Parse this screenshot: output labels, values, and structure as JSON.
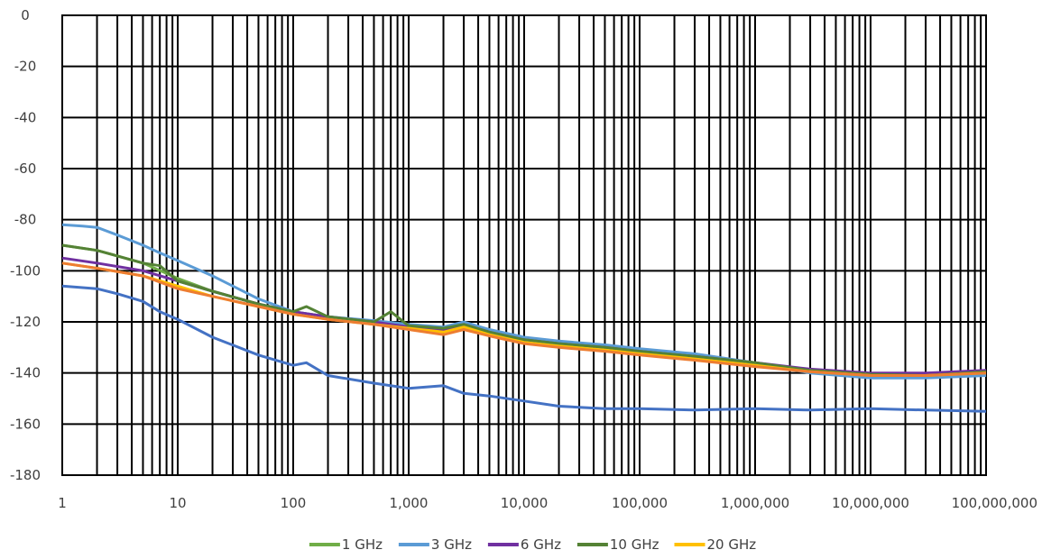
{
  "chart_data": {
    "type": "line",
    "x_scale": "log",
    "xlim": [
      1,
      100000000
    ],
    "ylim": [
      -180,
      0
    ],
    "grid": true,
    "legend_position": "bottom",
    "y_ticks": [
      {
        "value": 0,
        "label": "0"
      },
      {
        "value": -20,
        "label": "-20"
      },
      {
        "value": -40,
        "label": "-40"
      },
      {
        "value": -60,
        "label": "-60"
      },
      {
        "value": -80,
        "label": "-80"
      },
      {
        "value": -100,
        "label": "-100"
      },
      {
        "value": -120,
        "label": "-120"
      },
      {
        "value": -140,
        "label": "-140"
      },
      {
        "value": -160,
        "label": "-160"
      },
      {
        "value": -180,
        "label": "-180"
      }
    ],
    "x_ticks": [
      {
        "value": 1,
        "label": "1"
      },
      {
        "value": 10,
        "label": "10"
      },
      {
        "value": 100,
        "label": "100"
      },
      {
        "value": 1000,
        "label": "1,000"
      },
      {
        "value": 10000,
        "label": "10,000"
      },
      {
        "value": 100000,
        "label": "100,000"
      },
      {
        "value": 1000000,
        "label": "1,000,000"
      },
      {
        "value": 10000000,
        "label": "10,000,000"
      },
      {
        "value": 100000000,
        "label": "100,000,000"
      }
    ],
    "series": [
      {
        "name": "1 GHz",
        "color": "#70ad47",
        "x": [
          1,
          2,
          5,
          10,
          20,
          50,
          100,
          200,
          500,
          1000,
          2000,
          3000,
          5000,
          10000,
          20000,
          50000,
          100000,
          300000,
          1000000,
          3000000,
          10000000,
          30000000,
          100000000
        ],
        "y": [
          -90,
          -92,
          -97,
          -103,
          -108,
          -113,
          -116,
          -118,
          -120,
          -122,
          -123,
          -121,
          -124,
          -127,
          -128,
          -130,
          -131,
          -133,
          -136,
          -139,
          -141,
          -141,
          -139
        ]
      },
      {
        "name": "3 GHz",
        "color": "#5b9bd5",
        "x": [
          1,
          1.5,
          2,
          3,
          5,
          7,
          10,
          20,
          50,
          100,
          200,
          500,
          1000,
          2000,
          3000,
          5000,
          10000,
          20000,
          50000,
          100000,
          300000,
          1000000,
          3000000,
          10000000,
          30000000,
          100000000
        ],
        "y": [
          -82,
          -82.5,
          -83,
          -86,
          -90,
          -93,
          -96,
          -102,
          -111,
          -116,
          -118,
          -119.5,
          -121,
          -122,
          -120,
          -123,
          -126,
          -127.5,
          -129,
          -130.5,
          -132.5,
          -136,
          -140,
          -142,
          -142,
          -141
        ]
      },
      {
        "name": "6 GHz",
        "color": "#7030a0",
        "x": [
          1,
          2,
          5,
          10,
          20,
          50,
          100,
          200,
          500,
          1000,
          2000,
          3000,
          5000,
          10000,
          20000,
          50000,
          100000,
          300000,
          1000000,
          3000000,
          10000000,
          30000000,
          100000000
        ],
        "y": [
          -95,
          -97,
          -100,
          -104,
          -108,
          -113,
          -116,
          -118,
          -120,
          -122,
          -123,
          -121,
          -124,
          -127,
          -128.5,
          -130,
          -131.5,
          -133.5,
          -136,
          -138.5,
          -140,
          -140,
          -139
        ]
      },
      {
        "name": "10 GHz",
        "color": "#548235",
        "x": [
          1,
          2,
          5,
          7,
          10,
          20,
          50,
          100,
          130,
          200,
          500,
          700,
          1000,
          2000,
          3000,
          5000,
          10000,
          20000,
          50000,
          100000,
          300000,
          1000000,
          3000000,
          10000000,
          30000000,
          100000000
        ],
        "y": [
          -90,
          -92,
          -97,
          -98,
          -104,
          -108,
          -113,
          -116,
          -114,
          -118,
          -120,
          -116,
          -121.5,
          -122.5,
          -121,
          -124,
          -127,
          -128.5,
          -130,
          -131.5,
          -133.5,
          -136,
          -139,
          -140.5,
          -141,
          -139.5
        ]
      },
      {
        "name": "20 GHz",
        "color": "#ffc000",
        "x": [
          1,
          2,
          5,
          10,
          20,
          50,
          100,
          200,
          500,
          1000,
          2000,
          3000,
          5000,
          10000,
          20000,
          50000,
          100000,
          300000,
          1000000,
          3000000,
          10000000,
          30000000,
          100000000
        ],
        "y": [
          -97,
          -99,
          -102,
          -106,
          -110,
          -114,
          -117,
          -119,
          -121,
          -122.5,
          -124,
          -122,
          -125,
          -128,
          -129.5,
          -131,
          -132.5,
          -134.5,
          -137,
          -139.5,
          -141,
          -141,
          -140
        ]
      },
      {
        "name": "",
        "color": "#ed7d31",
        "x": [
          1,
          2,
          5,
          10,
          20,
          50,
          100,
          200,
          500,
          1000,
          2000,
          3000,
          5000,
          10000,
          20000,
          50000,
          100000,
          300000,
          1000000,
          3000000,
          10000000,
          30000000,
          100000000
        ],
        "y": [
          -97,
          -99,
          -102,
          -107,
          -110,
          -114,
          -117,
          -119,
          -121,
          -123,
          -125,
          -123,
          -125.5,
          -128.5,
          -130,
          -131.5,
          -133,
          -135,
          -137.5,
          -139.5,
          -141,
          -141,
          -140
        ]
      },
      {
        "name": "",
        "color": "#4472c4",
        "x": [
          1,
          2,
          3,
          5,
          7,
          10,
          20,
          50,
          100,
          130,
          200,
          500,
          1000,
          2000,
          3000,
          5000,
          10000,
          20000,
          50000,
          100000,
          300000,
          1000000,
          3000000,
          10000000,
          30000000,
          100000000
        ],
        "y": [
          -106,
          -107,
          -109,
          -112,
          -116,
          -119,
          -126,
          -133,
          -137,
          -136,
          -141,
          -144,
          -146,
          -145,
          -148,
          -149,
          -151,
          -153,
          -154,
          -154,
          -154.5,
          -154,
          -154.5,
          -154,
          -154.5,
          -155
        ]
      }
    ]
  }
}
